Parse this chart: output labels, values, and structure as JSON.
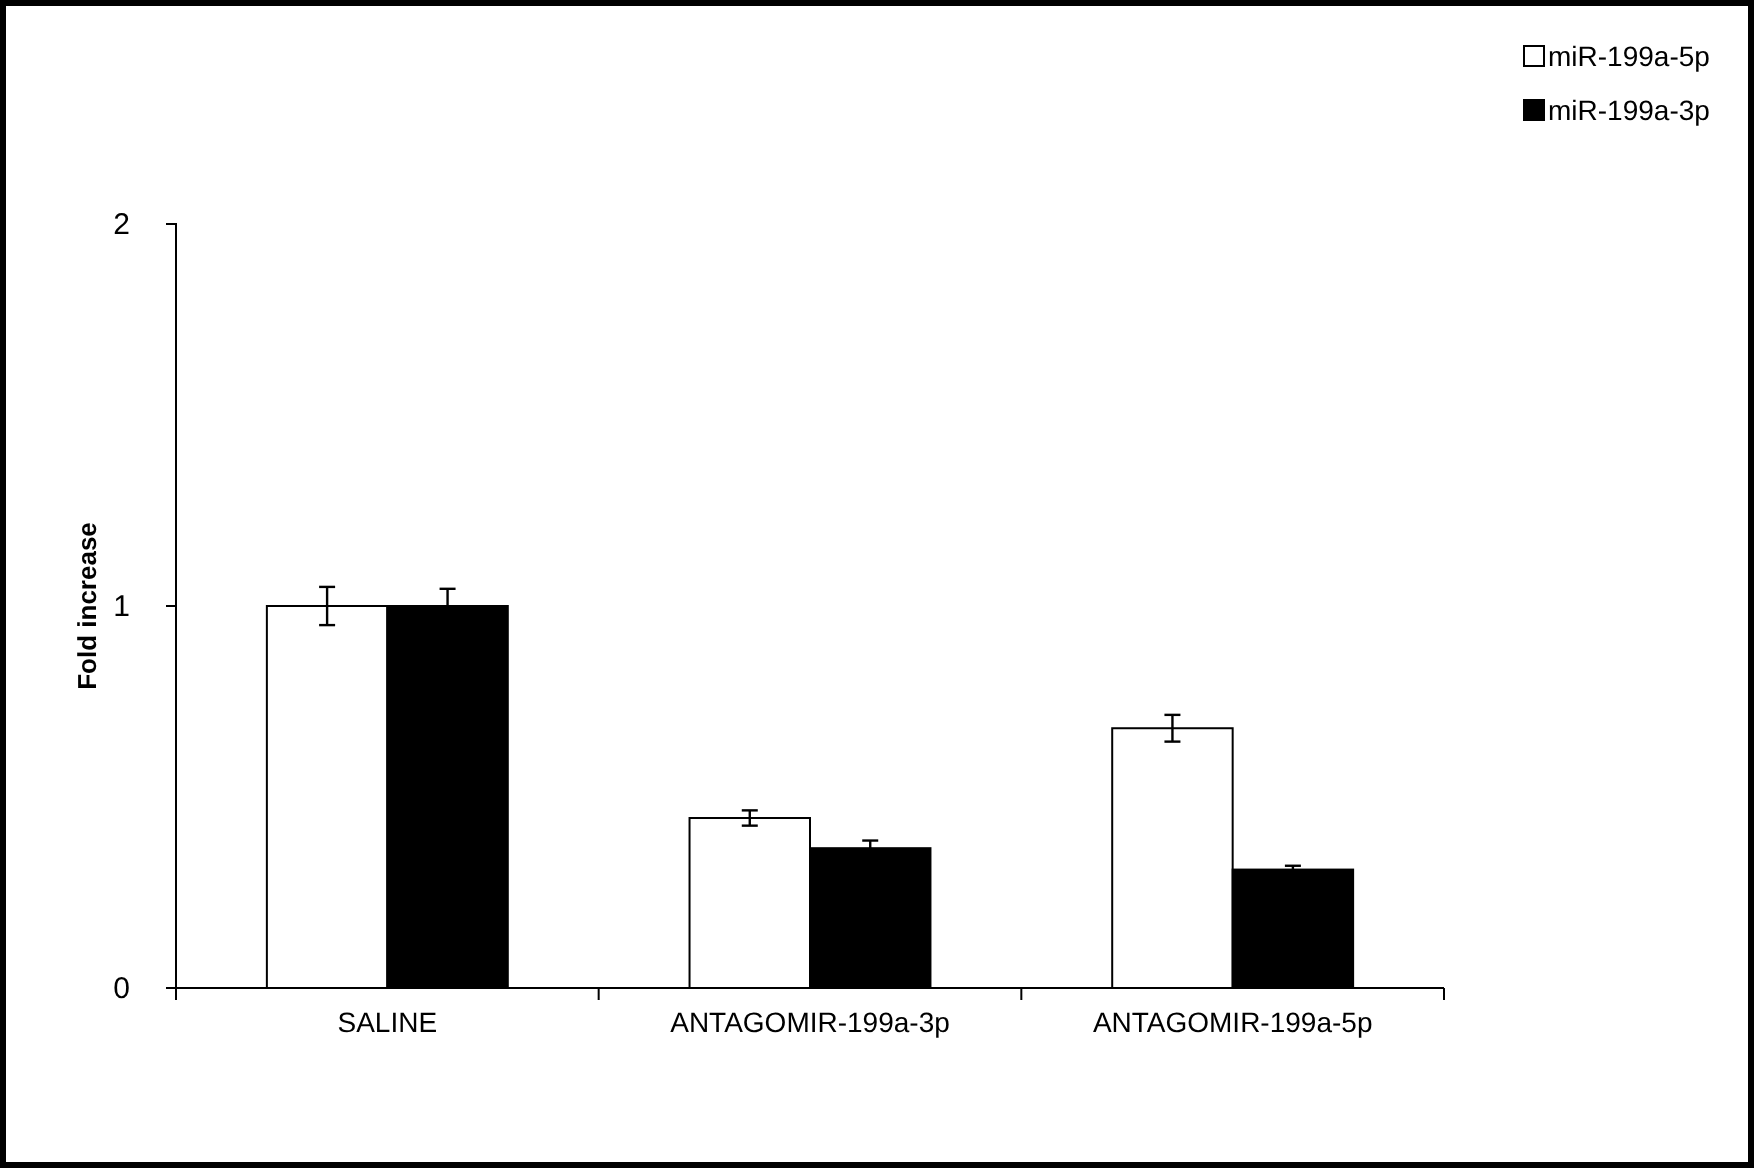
{
  "chart_data": {
    "type": "bar",
    "ylabel": "Fold increase",
    "categories": [
      "SALINE",
      "ANTAGOMIR-199a-3p",
      "ANTAGOMIR-199a-5p"
    ],
    "series": [
      {
        "name": "miR-199a-5p",
        "color": "#ffffff",
        "values": [
          1.0,
          0.445,
          0.68
        ],
        "errors": [
          0.05,
          0.02,
          0.035
        ]
      },
      {
        "name": "miR-199a-3p",
        "color": "#000000",
        "values": [
          1.0,
          0.366,
          0.31
        ],
        "errors": [
          0.045,
          0.02,
          0.01
        ]
      }
    ],
    "ylim": [
      0,
      2
    ],
    "yticks": [
      0,
      1,
      2
    ],
    "grid": false,
    "legend": "top right"
  }
}
